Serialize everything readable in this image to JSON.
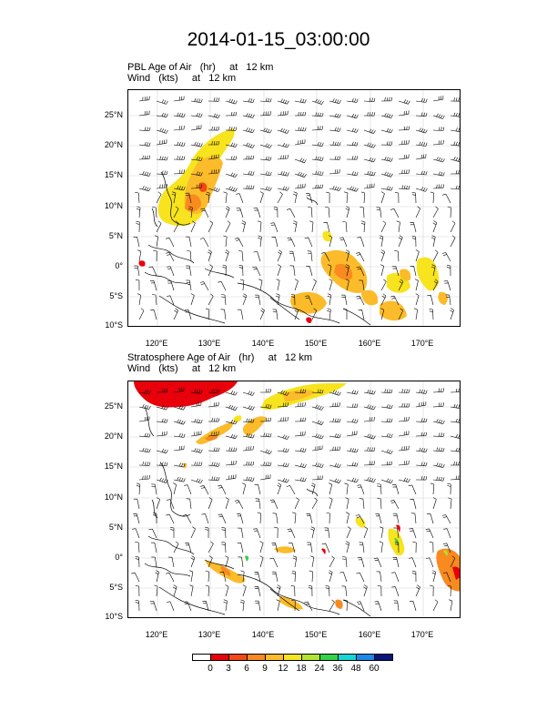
{
  "title": "2014-01-15_03:00:00",
  "panels": [
    {
      "line1": "PBL Age of Air   (hr)     at   12 km",
      "line2": "Wind   (kts)     at   12 km"
    },
    {
      "line1": "Stratosphere Age of Air   (hr)     at   12 km",
      "line2": "Wind   (kts)     at   12 km"
    }
  ],
  "lat_labels": [
    "25°N",
    "20°N",
    "15°N",
    "10°N",
    "5°N",
    "0°",
    "5°S",
    "10°S"
  ],
  "lon_labels": [
    "120°E",
    "130°E",
    "140°E",
    "150°E",
    "160°E",
    "170°E"
  ],
  "legend": {
    "labels": [
      "0",
      "3",
      "6",
      "9",
      "12",
      "18",
      "24",
      "36",
      "48",
      "60"
    ],
    "colors": [
      "#ffffff",
      "#e8000a",
      "#f24a14",
      "#f88a20",
      "#fbbb2a",
      "#f7e31e",
      "#b1e432",
      "#34d24a",
      "#14d6d4",
      "#1e86e8",
      "#0a1678"
    ]
  }
}
